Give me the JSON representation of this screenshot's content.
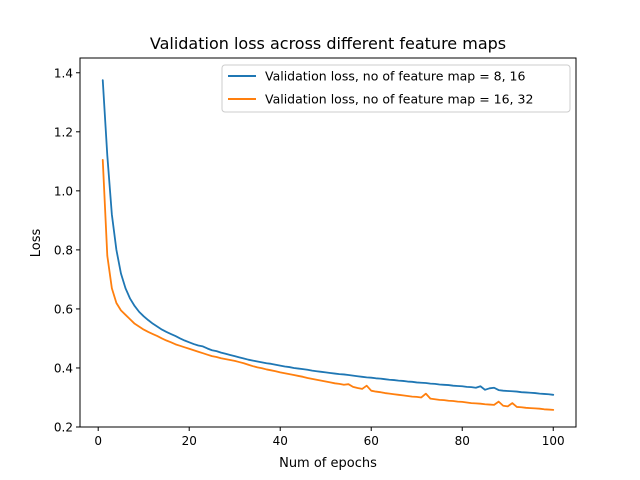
{
  "chart_data": {
    "type": "line",
    "title": "Validation loss across different feature maps",
    "xlabel": "Num of epochs",
    "ylabel": "Loss",
    "xlim": [
      -4.0,
      105.0
    ],
    "ylim": [
      0.2,
      1.45
    ],
    "xticks": [
      0,
      20,
      40,
      60,
      80,
      100
    ],
    "yticks": [
      0.2,
      0.4,
      0.6,
      0.8,
      1.0,
      1.2,
      1.4
    ],
    "xtick_labels": [
      "0",
      "20",
      "40",
      "60",
      "80",
      "100"
    ],
    "ytick_labels": [
      "0.2",
      "0.4",
      "0.6",
      "0.8",
      "1.0",
      "1.2",
      "1.4"
    ],
    "legend_position": "top-right",
    "grid": false,
    "x": [
      1,
      2,
      3,
      4,
      5,
      6,
      7,
      8,
      9,
      10,
      11,
      12,
      13,
      14,
      15,
      16,
      17,
      18,
      19,
      20,
      21,
      22,
      23,
      24,
      25,
      26,
      27,
      28,
      29,
      30,
      31,
      32,
      33,
      34,
      35,
      36,
      37,
      38,
      39,
      40,
      41,
      42,
      43,
      44,
      45,
      46,
      47,
      48,
      49,
      50,
      51,
      52,
      53,
      54,
      55,
      56,
      57,
      58,
      59,
      60,
      61,
      62,
      63,
      64,
      65,
      66,
      67,
      68,
      69,
      70,
      71,
      72,
      73,
      74,
      75,
      76,
      77,
      78,
      79,
      80,
      81,
      82,
      83,
      84,
      85,
      86,
      87,
      88,
      89,
      90,
      91,
      92,
      93,
      94,
      95,
      96,
      97,
      98,
      99,
      100
    ],
    "series": [
      {
        "name": "Validation loss, no of feature map = 8, 16",
        "color": "#1f77b4",
        "values": [
          1.375,
          1.12,
          0.92,
          0.8,
          0.72,
          0.67,
          0.635,
          0.61,
          0.59,
          0.575,
          0.562,
          0.55,
          0.54,
          0.53,
          0.522,
          0.515,
          0.508,
          0.5,
          0.493,
          0.487,
          0.481,
          0.476,
          0.473,
          0.466,
          0.46,
          0.457,
          0.452,
          0.448,
          0.444,
          0.44,
          0.436,
          0.432,
          0.428,
          0.425,
          0.422,
          0.419,
          0.416,
          0.414,
          0.411,
          0.408,
          0.405,
          0.403,
          0.4,
          0.398,
          0.396,
          0.394,
          0.391,
          0.389,
          0.387,
          0.385,
          0.383,
          0.381,
          0.379,
          0.378,
          0.376,
          0.374,
          0.372,
          0.37,
          0.368,
          0.367,
          0.365,
          0.364,
          0.362,
          0.36,
          0.359,
          0.357,
          0.356,
          0.354,
          0.353,
          0.351,
          0.35,
          0.349,
          0.347,
          0.346,
          0.344,
          0.343,
          0.342,
          0.34,
          0.339,
          0.338,
          0.336,
          0.335,
          0.333,
          0.338,
          0.326,
          0.331,
          0.333,
          0.325,
          0.323,
          0.322,
          0.321,
          0.32,
          0.318,
          0.317,
          0.316,
          0.315,
          0.313,
          0.312,
          0.311,
          0.309
        ]
      },
      {
        "name": "Validation loss, no of feature map = 16, 32",
        "color": "#ff7f0e",
        "values": [
          1.105,
          0.78,
          0.67,
          0.62,
          0.595,
          0.58,
          0.565,
          0.55,
          0.54,
          0.53,
          0.522,
          0.515,
          0.508,
          0.5,
          0.493,
          0.487,
          0.48,
          0.475,
          0.47,
          0.465,
          0.46,
          0.455,
          0.45,
          0.445,
          0.44,
          0.437,
          0.433,
          0.43,
          0.427,
          0.424,
          0.42,
          0.416,
          0.411,
          0.406,
          0.402,
          0.399,
          0.395,
          0.392,
          0.389,
          0.385,
          0.382,
          0.379,
          0.376,
          0.373,
          0.37,
          0.366,
          0.363,
          0.36,
          0.357,
          0.354,
          0.351,
          0.348,
          0.346,
          0.343,
          0.345,
          0.336,
          0.332,
          0.329,
          0.34,
          0.323,
          0.32,
          0.318,
          0.315,
          0.313,
          0.311,
          0.309,
          0.307,
          0.305,
          0.303,
          0.302,
          0.3,
          0.313,
          0.296,
          0.294,
          0.292,
          0.291,
          0.289,
          0.288,
          0.286,
          0.285,
          0.283,
          0.281,
          0.28,
          0.279,
          0.277,
          0.276,
          0.275,
          0.286,
          0.272,
          0.27,
          0.281,
          0.268,
          0.267,
          0.265,
          0.264,
          0.263,
          0.262,
          0.26,
          0.259,
          0.258
        ]
      }
    ]
  }
}
